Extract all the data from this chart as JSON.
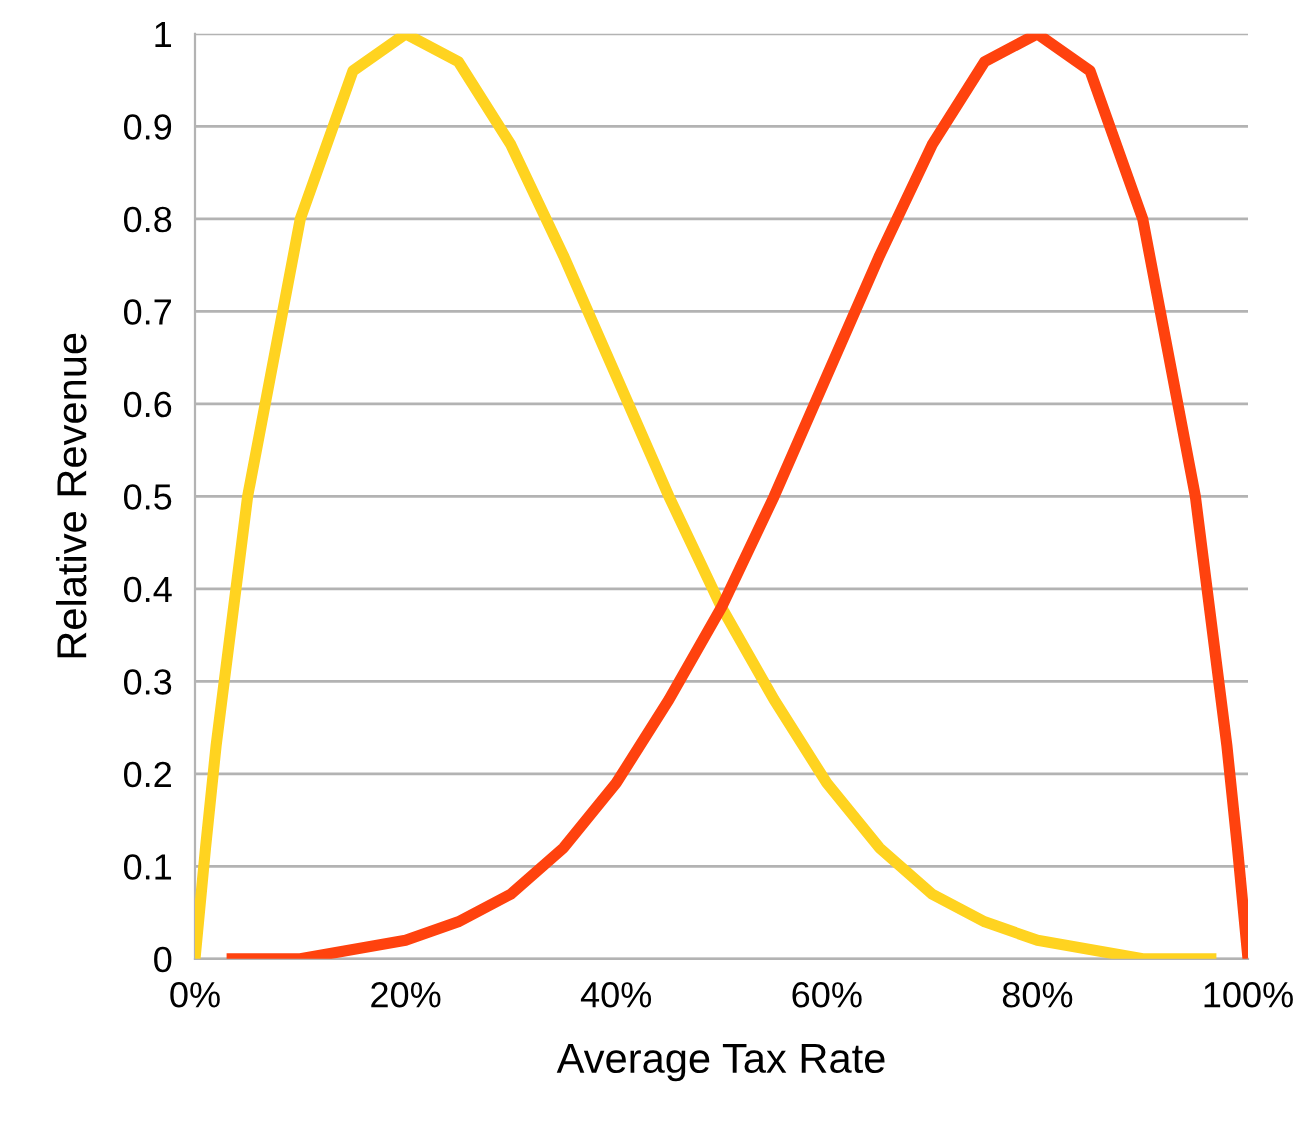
{
  "chart_data": {
    "type": "line",
    "xlabel": "Average Tax Rate",
    "ylabel": "Relative Revenue",
    "series": [
      {
        "color": "#ffd320",
        "x": [
          0,
          1,
          2,
          5,
          10,
          15,
          20,
          25,
          30,
          35,
          40,
          45,
          50,
          55,
          60,
          65,
          70,
          75,
          80,
          85,
          90,
          97
        ],
        "values": [
          0,
          0.12,
          0.23,
          0.5,
          0.8,
          0.96,
          1,
          0.97,
          0.88,
          0.76,
          0.63,
          0.5,
          0.38,
          0.28,
          0.19,
          0.12,
          0.07,
          0.04,
          0.02,
          0.01,
          0,
          0
        ]
      },
      {
        "color": "#ff420e",
        "x": [
          3,
          10,
          15,
          20,
          25,
          30,
          35,
          40,
          45,
          50,
          55,
          60,
          65,
          70,
          75,
          80,
          85,
          90,
          95,
          98,
          99,
          100
        ],
        "values": [
          0,
          0,
          0.01,
          0.02,
          0.04,
          0.07,
          0.12,
          0.19,
          0.28,
          0.38,
          0.5,
          0.63,
          0.76,
          0.88,
          0.97,
          1,
          0.96,
          0.8,
          0.5,
          0.23,
          0.12,
          0
        ]
      }
    ],
    "xlim": [
      0,
      100
    ],
    "xticks": [
      {
        "value": 0,
        "label": "0%"
      },
      {
        "value": 20,
        "label": "20%"
      },
      {
        "value": 40,
        "label": "40%"
      },
      {
        "value": 60,
        "label": "60%"
      },
      {
        "value": 80,
        "label": "80%"
      },
      {
        "value": 100,
        "label": "100%"
      }
    ],
    "ylim": [
      0,
      1
    ],
    "yticks": [
      0,
      0.1,
      0.2,
      0.3,
      0.4,
      0.5,
      0.6,
      0.7,
      0.8,
      0.9,
      1
    ],
    "grid": "y",
    "line_style": "solid",
    "marker": "none"
  }
}
